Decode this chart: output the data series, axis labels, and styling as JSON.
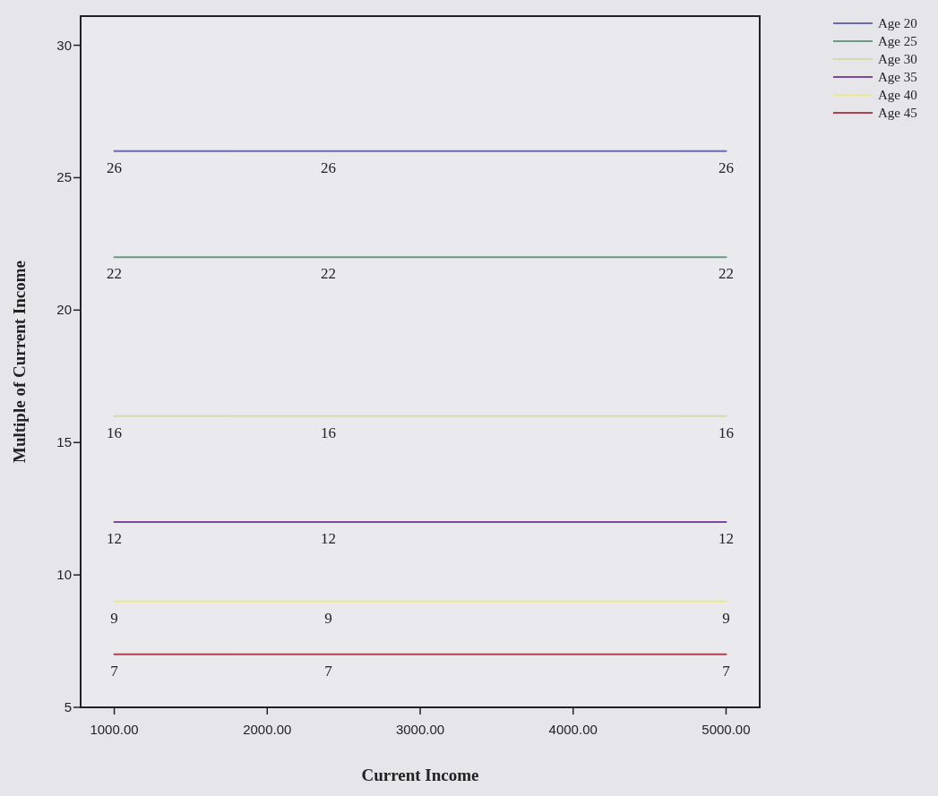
{
  "chart_data": {
    "type": "line",
    "xlabel": "Current Income",
    "ylabel": "Multiple of Current Income",
    "x": [
      1000,
      2400,
      5000
    ],
    "xlim": [
      780,
      5220
    ],
    "ylim": [
      5,
      31.1
    ],
    "xticks": [
      {
        "value": 1000,
        "label": "1000.00"
      },
      {
        "value": 2000,
        "label": "2000.00"
      },
      {
        "value": 3000,
        "label": "3000.00"
      },
      {
        "value": 4000,
        "label": "4000.00"
      },
      {
        "value": 5000,
        "label": "5000.00"
      }
    ],
    "yticks": [
      5,
      10,
      15,
      20,
      25,
      30
    ],
    "data_labels": true,
    "legend": "top right",
    "grid": false,
    "marker": "none",
    "line_style": "solid",
    "series": [
      {
        "name": "Age 20",
        "color": "#6a6ab4",
        "values": [
          26,
          26,
          26
        ]
      },
      {
        "name": "Age 25",
        "color": "#6a9a80",
        "values": [
          22,
          22,
          22
        ]
      },
      {
        "name": "Age 30",
        "color": "#d2dcac",
        "values": [
          16,
          16,
          16
        ]
      },
      {
        "name": "Age 35",
        "color": "#7a4a96",
        "values": [
          12,
          12,
          12
        ]
      },
      {
        "name": "Age 40",
        "color": "#eaea8a",
        "values": [
          9,
          9,
          9
        ]
      },
      {
        "name": "Age 45",
        "color": "#b04050",
        "values": [
          7,
          7,
          7
        ]
      }
    ]
  }
}
